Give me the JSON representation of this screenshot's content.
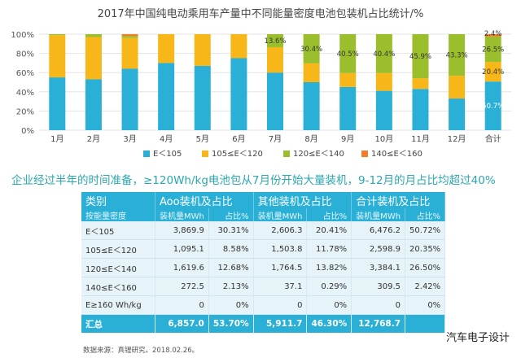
{
  "chart_data": {
    "type": "bar",
    "stacked": true,
    "percent": true,
    "title": "2017年中国纯电动乘用车产量中不同能量密度电池包装机占比统计/%",
    "categories": [
      "1月",
      "2月",
      "3月",
      "4月",
      "5月",
      "6月",
      "7月",
      "8月",
      "9月",
      "10月",
      "11月",
      "12月",
      "合计"
    ],
    "ylim": [
      0,
      100
    ],
    "yticks": [
      "0%",
      "20%",
      "40%",
      "60%",
      "80%",
      "100%"
    ],
    "legend_position": "bottom",
    "series": [
      {
        "name": "E＜105",
        "color": "#2ab0d6",
        "values": [
          55,
          53,
          64,
          70,
          67,
          75,
          60,
          50,
          45,
          41,
          43,
          33,
          50.7
        ]
      },
      {
        "name": "105≤E＜120",
        "color": "#f7b718",
        "values": [
          44,
          44,
          32,
          30,
          33,
          25,
          26.4,
          19.6,
          14.5,
          18.6,
          11.1,
          23.7,
          20.4
        ]
      },
      {
        "name": "120≤E＜140",
        "color": "#9bbf2c",
        "values": [
          1,
          3,
          2,
          0,
          0,
          0,
          13.6,
          30.4,
          40.5,
          40.4,
          45.9,
          43.3,
          26.5
        ]
      },
      {
        "name": "140≤E＜160",
        "color": "#f07e2a",
        "values": [
          0,
          0,
          2,
          0,
          0,
          0,
          0,
          0,
          0,
          0,
          0,
          0,
          2.4
        ]
      }
    ],
    "annotations": [
      {
        "category": "7月",
        "series": "120≤E＜140",
        "label": "13.6%"
      },
      {
        "category": "8月",
        "series": "120≤E＜140",
        "label": "30.4%"
      },
      {
        "category": "9月",
        "series": "120≤E＜140",
        "label": "40.5%"
      },
      {
        "category": "10月",
        "series": "120≤E＜140",
        "label": "40.4%"
      },
      {
        "category": "11月",
        "series": "120≤E＜140",
        "label": "45.9%"
      },
      {
        "category": "12月",
        "series": "120≤E＜140",
        "label": "43.3%"
      },
      {
        "category": "合计",
        "series": "140≤E＜160",
        "label": "2.4%"
      },
      {
        "category": "合计",
        "series": "120≤E＜140",
        "label": "26.5%"
      },
      {
        "category": "合计",
        "series": "105≤E＜120",
        "label": "20.4%"
      },
      {
        "category": "合计",
        "series": "E＜105",
        "label": "50.7%"
      }
    ],
    "gridlines": true
  },
  "subtitle": "企业经过半年的时间准备，≥120Wh/kg电池包从7月份开始大量装机，9-12月的月占比均超过40%",
  "table": {
    "header": [
      "类别",
      "Aoo装机及占比",
      "其他装机及占比",
      "合计装机及占比"
    ],
    "subheader": [
      "按能量密度",
      "装机量MWh",
      "占比%",
      "装机量MWh",
      "占比%",
      "装机量MWh",
      "占比%"
    ],
    "rows": [
      [
        "E＜105",
        "3,869.9",
        "30.31%",
        "2,606.3",
        "20.41%",
        "6,476.2",
        "50.72%"
      ],
      [
        "105≤E＜120",
        "1,095.1",
        "8.58%",
        "1,503.8",
        "11.78%",
        "2,598.9",
        "20.35%"
      ],
      [
        "120≤E＜140",
        "1,619.6",
        "12.68%",
        "1,764.5",
        "13.82%",
        "3,384.1",
        "26.50%"
      ],
      [
        "140≤E＜160",
        "272.5",
        "2.13%",
        "37.1",
        "0.29%",
        "309.5",
        "2.42%"
      ],
      [
        "E≥160 Wh/kg",
        "0",
        "0%",
        "0",
        "0%",
        "0",
        "0%"
      ]
    ],
    "total": [
      "汇总",
      "6,857.0",
      "53.70%",
      "5,911.7",
      "46.30%",
      "12,768.7",
      ""
    ]
  },
  "source": "数据来源：真锂研究。2018.02.26。",
  "watermark": "汽车电子设计"
}
